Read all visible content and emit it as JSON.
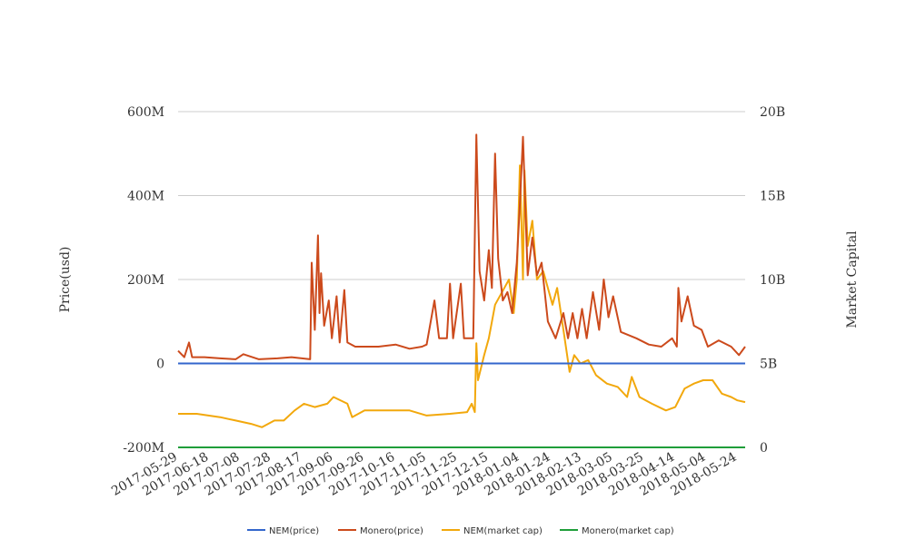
{
  "chart_data": {
    "type": "line",
    "title": "",
    "ylabel_left": "Price(usd)",
    "ylabel_right": "Market Capital",
    "ylim_left": [
      -200000000,
      600000000
    ],
    "ylim_right": [
      0,
      20000000000
    ],
    "yticks_left": [
      {
        "value": 600000000,
        "label": "600M"
      },
      {
        "value": 400000000,
        "label": "400M"
      },
      {
        "value": 200000000,
        "label": "200M"
      },
      {
        "value": 0,
        "label": "0"
      },
      {
        "value": -200000000,
        "label": "-200M"
      }
    ],
    "yticks_right": [
      {
        "value": 20000000000,
        "label": "20B"
      },
      {
        "value": 15000000000,
        "label": "15B"
      },
      {
        "value": 10000000000,
        "label": "10B"
      },
      {
        "value": 5000000000,
        "label": "5B"
      },
      {
        "value": 0,
        "label": "0"
      }
    ],
    "x_range": [
      "2017-05-29",
      "2018-05-29"
    ],
    "xtick_labels": [
      "2017-05-29",
      "2017-06-18",
      "2017-07-08",
      "2017-07-28",
      "2017-08-17",
      "2017-09-06",
      "2017-09-26",
      "2017-10-16",
      "2017-11-05",
      "2017-11-25",
      "2017-12-15",
      "2018-01-04",
      "2018-01-24",
      "2018-02-13",
      "2018-03-05",
      "2018-03-25",
      "2018-04-14",
      "2018-05-04",
      "2018-05-24"
    ],
    "grid": true,
    "legend_position": "bottom-center",
    "series": [
      {
        "name": "NEM(price)",
        "axis": "left",
        "color": "#3366cc",
        "points": [
          [
            "2017-05-29",
            0
          ],
          [
            "2018-05-29",
            0
          ]
        ]
      },
      {
        "name": "Monero(price)",
        "axis": "left",
        "color": "#cc4a1c",
        "points": [
          [
            "2017-05-29",
            30000000
          ],
          [
            "2017-06-02",
            15000000
          ],
          [
            "2017-06-05",
            50000000
          ],
          [
            "2017-06-07",
            15000000
          ],
          [
            "2017-06-15",
            15000000
          ],
          [
            "2017-06-25",
            12000000
          ],
          [
            "2017-07-05",
            10000000
          ],
          [
            "2017-07-10",
            22000000
          ],
          [
            "2017-07-20",
            10000000
          ],
          [
            "2017-08-01",
            12000000
          ],
          [
            "2017-08-10",
            15000000
          ],
          [
            "2017-08-22",
            10000000
          ],
          [
            "2017-08-23",
            240000000
          ],
          [
            "2017-08-25",
            80000000
          ],
          [
            "2017-08-27",
            305000000
          ],
          [
            "2017-08-28",
            120000000
          ],
          [
            "2017-08-29",
            215000000
          ],
          [
            "2017-08-31",
            90000000
          ],
          [
            "2017-09-03",
            150000000
          ],
          [
            "2017-09-05",
            60000000
          ],
          [
            "2017-09-08",
            160000000
          ],
          [
            "2017-09-10",
            50000000
          ],
          [
            "2017-09-13",
            175000000
          ],
          [
            "2017-09-15",
            50000000
          ],
          [
            "2017-09-20",
            40000000
          ],
          [
            "2017-09-26",
            40000000
          ],
          [
            "2017-10-05",
            40000000
          ],
          [
            "2017-10-16",
            45000000
          ],
          [
            "2017-10-25",
            35000000
          ],
          [
            "2017-11-02",
            40000000
          ],
          [
            "2017-11-05",
            45000000
          ],
          [
            "2017-11-10",
            150000000
          ],
          [
            "2017-11-13",
            60000000
          ],
          [
            "2017-11-18",
            60000000
          ],
          [
            "2017-11-20",
            190000000
          ],
          [
            "2017-11-22",
            60000000
          ],
          [
            "2017-11-27",
            190000000
          ],
          [
            "2017-11-29",
            60000000
          ],
          [
            "2017-12-05",
            60000000
          ],
          [
            "2017-12-07",
            545000000
          ],
          [
            "2017-12-09",
            220000000
          ],
          [
            "2017-12-12",
            150000000
          ],
          [
            "2017-12-15",
            270000000
          ],
          [
            "2017-12-17",
            180000000
          ],
          [
            "2017-12-19",
            500000000
          ],
          [
            "2017-12-21",
            250000000
          ],
          [
            "2017-12-24",
            150000000
          ],
          [
            "2017-12-27",
            170000000
          ],
          [
            "2017-12-30",
            120000000
          ],
          [
            "2018-01-02",
            240000000
          ],
          [
            "2018-01-04",
            380000000
          ],
          [
            "2018-01-06",
            540000000
          ],
          [
            "2018-01-09",
            210000000
          ],
          [
            "2018-01-12",
            300000000
          ],
          [
            "2018-01-15",
            210000000
          ],
          [
            "2018-01-18",
            240000000
          ],
          [
            "2018-01-22",
            100000000
          ],
          [
            "2018-01-27",
            60000000
          ],
          [
            "2018-02-01",
            120000000
          ],
          [
            "2018-02-04",
            60000000
          ],
          [
            "2018-02-07",
            120000000
          ],
          [
            "2018-02-10",
            60000000
          ],
          [
            "2018-02-13",
            130000000
          ],
          [
            "2018-02-16",
            60000000
          ],
          [
            "2018-02-20",
            170000000
          ],
          [
            "2018-02-24",
            80000000
          ],
          [
            "2018-02-27",
            200000000
          ],
          [
            "2018-03-02",
            110000000
          ],
          [
            "2018-03-05",
            160000000
          ],
          [
            "2018-03-10",
            75000000
          ],
          [
            "2018-03-20",
            60000000
          ],
          [
            "2018-03-28",
            45000000
          ],
          [
            "2018-04-05",
            40000000
          ],
          [
            "2018-04-12",
            60000000
          ],
          [
            "2018-04-15",
            40000000
          ],
          [
            "2018-04-16",
            180000000
          ],
          [
            "2018-04-18",
            100000000
          ],
          [
            "2018-04-22",
            160000000
          ],
          [
            "2018-04-26",
            90000000
          ],
          [
            "2018-05-01",
            80000000
          ],
          [
            "2018-05-05",
            40000000
          ],
          [
            "2018-05-12",
            55000000
          ],
          [
            "2018-05-20",
            40000000
          ],
          [
            "2018-05-25",
            20000000
          ],
          [
            "2018-05-29",
            40000000
          ]
        ]
      },
      {
        "name": "NEM(market cap)",
        "axis": "right",
        "color": "#f2a80c",
        "points": [
          [
            "2017-05-29",
            2000000000
          ],
          [
            "2017-06-10",
            2000000000
          ],
          [
            "2017-06-25",
            1800000000
          ],
          [
            "2017-07-05",
            1600000000
          ],
          [
            "2017-07-15",
            1400000000
          ],
          [
            "2017-07-22",
            1200000000
          ],
          [
            "2017-07-30",
            1600000000
          ],
          [
            "2017-08-05",
            1600000000
          ],
          [
            "2017-08-12",
            2200000000
          ],
          [
            "2017-08-18",
            2600000000
          ],
          [
            "2017-08-25",
            2400000000
          ],
          [
            "2017-09-02",
            2600000000
          ],
          [
            "2017-09-06",
            3000000000
          ],
          [
            "2017-09-15",
            2600000000
          ],
          [
            "2017-09-18",
            1800000000
          ],
          [
            "2017-09-26",
            2200000000
          ],
          [
            "2017-10-10",
            2200000000
          ],
          [
            "2017-10-25",
            2200000000
          ],
          [
            "2017-11-05",
            1900000000
          ],
          [
            "2017-11-20",
            2000000000
          ],
          [
            "2017-12-01",
            2100000000
          ],
          [
            "2017-12-04",
            2600000000
          ],
          [
            "2017-12-06",
            2100000000
          ],
          [
            "2017-12-07",
            6200000000
          ],
          [
            "2017-12-08",
            4000000000
          ],
          [
            "2017-12-12",
            5500000000
          ],
          [
            "2017-12-15",
            6500000000
          ],
          [
            "2017-12-19",
            8500000000
          ],
          [
            "2017-12-25",
            9500000000
          ],
          [
            "2017-12-28",
            10000000000
          ],
          [
            "2017-12-31",
            8000000000
          ],
          [
            "2018-01-02",
            10000000000
          ],
          [
            "2018-01-04",
            16800000000
          ],
          [
            "2018-01-06",
            10000000000
          ],
          [
            "2018-01-07",
            16500000000
          ],
          [
            "2018-01-09",
            12000000000
          ],
          [
            "2018-01-12",
            13500000000
          ],
          [
            "2018-01-15",
            10000000000
          ],
          [
            "2018-01-19",
            10500000000
          ],
          [
            "2018-01-25",
            8500000000
          ],
          [
            "2018-01-28",
            9500000000
          ],
          [
            "2018-02-01",
            7000000000
          ],
          [
            "2018-02-05",
            4500000000
          ],
          [
            "2018-02-08",
            5500000000
          ],
          [
            "2018-02-12",
            5000000000
          ],
          [
            "2018-02-17",
            5200000000
          ],
          [
            "2018-02-22",
            4300000000
          ],
          [
            "2018-03-01",
            3800000000
          ],
          [
            "2018-03-08",
            3600000000
          ],
          [
            "2018-03-14",
            3000000000
          ],
          [
            "2018-03-17",
            4200000000
          ],
          [
            "2018-03-22",
            3000000000
          ],
          [
            "2018-03-30",
            2600000000
          ],
          [
            "2018-04-08",
            2200000000
          ],
          [
            "2018-04-14",
            2400000000
          ],
          [
            "2018-04-20",
            3500000000
          ],
          [
            "2018-04-26",
            3800000000
          ],
          [
            "2018-05-02",
            4000000000
          ],
          [
            "2018-05-08",
            4000000000
          ],
          [
            "2018-05-14",
            3200000000
          ],
          [
            "2018-05-20",
            3000000000
          ],
          [
            "2018-05-24",
            2800000000
          ],
          [
            "2018-05-29",
            2700000000
          ]
        ]
      },
      {
        "name": "Monero(market cap)",
        "axis": "right",
        "color": "#1f9e3a",
        "points": [
          [
            "2017-05-29",
            0
          ],
          [
            "2018-05-29",
            0
          ]
        ]
      }
    ]
  }
}
